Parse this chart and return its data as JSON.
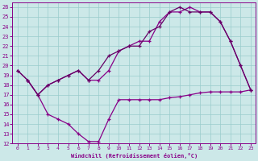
{
  "xlabel": "Windchill (Refroidissement éolien,°C)",
  "bg_color": "#cce8e8",
  "grid_color": "#99cccc",
  "line_color": "#880088",
  "line_color2": "#660066",
  "xlim": [
    -0.5,
    23.5
  ],
  "ylim": [
    12,
    26.5
  ],
  "yticks": [
    12,
    13,
    14,
    15,
    16,
    17,
    18,
    19,
    20,
    21,
    22,
    23,
    24,
    25,
    26
  ],
  "xticks": [
    0,
    1,
    2,
    3,
    4,
    5,
    6,
    7,
    8,
    9,
    10,
    11,
    12,
    13,
    14,
    15,
    16,
    17,
    18,
    19,
    20,
    21,
    22,
    23
  ],
  "line1_x": [
    0,
    1,
    2,
    3,
    4,
    5,
    6,
    7,
    8,
    9,
    10,
    11,
    12,
    13,
    14,
    15,
    16,
    17,
    18,
    19,
    20,
    21,
    22,
    23
  ],
  "line1_y": [
    19.5,
    18.5,
    17.0,
    18.0,
    18.5,
    19.0,
    19.5,
    18.5,
    18.5,
    19.5,
    21.5,
    22.0,
    22.5,
    22.5,
    24.5,
    25.5,
    25.5,
    26.0,
    25.5,
    25.5,
    24.5,
    22.5,
    20.0,
    17.5
  ],
  "line2_x": [
    1,
    2,
    3,
    4,
    5,
    6,
    7,
    8,
    9,
    10,
    11,
    12,
    13,
    14,
    15,
    16,
    17,
    18,
    19,
    20,
    21,
    22,
    23
  ],
  "line2_y": [
    18.5,
    17.0,
    15.0,
    14.5,
    14.0,
    13.0,
    12.2,
    12.2,
    14.5,
    16.5,
    16.5,
    16.5,
    16.5,
    16.5,
    16.7,
    16.8,
    17.0,
    17.2,
    17.3,
    17.3,
    17.3,
    17.3,
    17.5
  ],
  "line3_x": [
    0,
    1,
    2,
    3,
    4,
    5,
    6,
    7,
    8,
    9,
    10,
    11,
    12,
    13,
    14,
    15,
    16,
    17,
    18,
    19,
    20,
    21,
    22,
    23
  ],
  "line3_y": [
    19.5,
    18.5,
    17.0,
    18.0,
    18.5,
    19.0,
    19.5,
    18.5,
    19.5,
    21.0,
    21.5,
    22.0,
    22.0,
    23.5,
    24.0,
    25.5,
    26.0,
    25.5,
    25.5,
    25.5,
    24.5,
    22.5,
    20.0,
    17.5
  ]
}
